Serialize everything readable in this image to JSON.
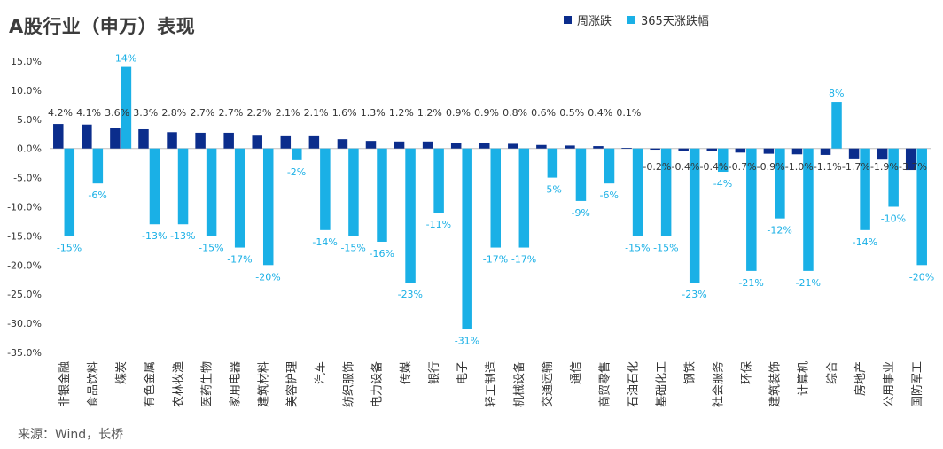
{
  "title": "A股行业（申万）表现",
  "source_note": "来源：Wind，长桥",
  "colors": {
    "weekly": "#0b2d8c",
    "annual": "#1ab0e6",
    "axis": "#bfbfbf"
  },
  "chart_data": {
    "type": "bar",
    "title": "A股行业（申万）表现",
    "ylim": [
      -35,
      15
    ],
    "yticks": [
      15,
      10,
      5,
      0,
      -5,
      -10,
      -15,
      -20,
      -25,
      -30,
      -35
    ],
    "ytick_labels": [
      "15.0%",
      "10.0%",
      "5.0%",
      "0.0%",
      "-5.0%",
      "-10.0%",
      "-15.0%",
      "-20.0%",
      "-25.0%",
      "-30.0%",
      "-35.0%"
    ],
    "legend_position": "top-right",
    "categories": [
      "非银金融",
      "食品饮料",
      "煤炭",
      "有色金属",
      "农林牧渔",
      "医药生物",
      "家用电器",
      "建筑材料",
      "美容护理",
      "汽车",
      "纺织服饰",
      "电力设备",
      "传媒",
      "银行",
      "电子",
      "轻工制造",
      "机械设备",
      "交通运输",
      "通信",
      "商贸零售",
      "石油石化",
      "基础化工",
      "钢铁",
      "社会服务",
      "环保",
      "建筑装饰",
      "计算机",
      "综合",
      "房地产",
      "公用事业",
      "国防军工"
    ],
    "series": [
      {
        "name": "周涨跌",
        "values": [
          4.2,
          4.1,
          3.6,
          3.3,
          2.8,
          2.7,
          2.7,
          2.2,
          2.1,
          2.1,
          1.6,
          1.3,
          1.2,
          1.2,
          0.9,
          0.9,
          0.8,
          0.6,
          0.5,
          0.4,
          0.1,
          -0.2,
          -0.4,
          -0.4,
          -0.7,
          -0.9,
          -1.0,
          -1.1,
          -1.7,
          -1.9,
          -3.7
        ],
        "labels": [
          "4.2%",
          "4.1%",
          "3.6%",
          "3.3%",
          "2.8%",
          "2.7%",
          "2.7%",
          "2.2%",
          "2.1%",
          "2.1%",
          "1.6%",
          "1.3%",
          "1.2%",
          "1.2%",
          "0.9%",
          "0.9%",
          "0.8%",
          "0.6%",
          "0.5%",
          "0.4%",
          "0.1%",
          "-0.2%",
          "-0.4%",
          "-0.4%",
          "-0.7%",
          "-0.9%",
          "-1.0%",
          "-1.1%",
          "-1.7%",
          "-1.9%",
          "-3.7%"
        ]
      },
      {
        "name": "365天涨跌幅",
        "values": [
          -15,
          -6,
          14,
          -13,
          -13,
          -15,
          -17,
          -20,
          -2,
          -14,
          -15,
          -16,
          -23,
          -11,
          -31,
          -17,
          -17,
          -5,
          -9,
          -6,
          -15,
          -15,
          -23,
          -4,
          -21,
          -12,
          -21,
          8,
          -14,
          -10,
          -20
        ],
        "labels": [
          "-15%",
          "-6%",
          "14%",
          "-13%",
          "-13%",
          "-15%",
          "-17%",
          "-20%",
          "-2%",
          "-14%",
          "-15%",
          "-16%",
          "-23%",
          "-11%",
          "-31%",
          "-17%",
          "-17%",
          "-5%",
          "-9%",
          "-6%",
          "-15%",
          "-15%",
          "-23%",
          "-4%",
          "-21%",
          "-12%",
          "-21%",
          "8%",
          "-14%",
          "-10%",
          "-20%"
        ]
      }
    ]
  }
}
